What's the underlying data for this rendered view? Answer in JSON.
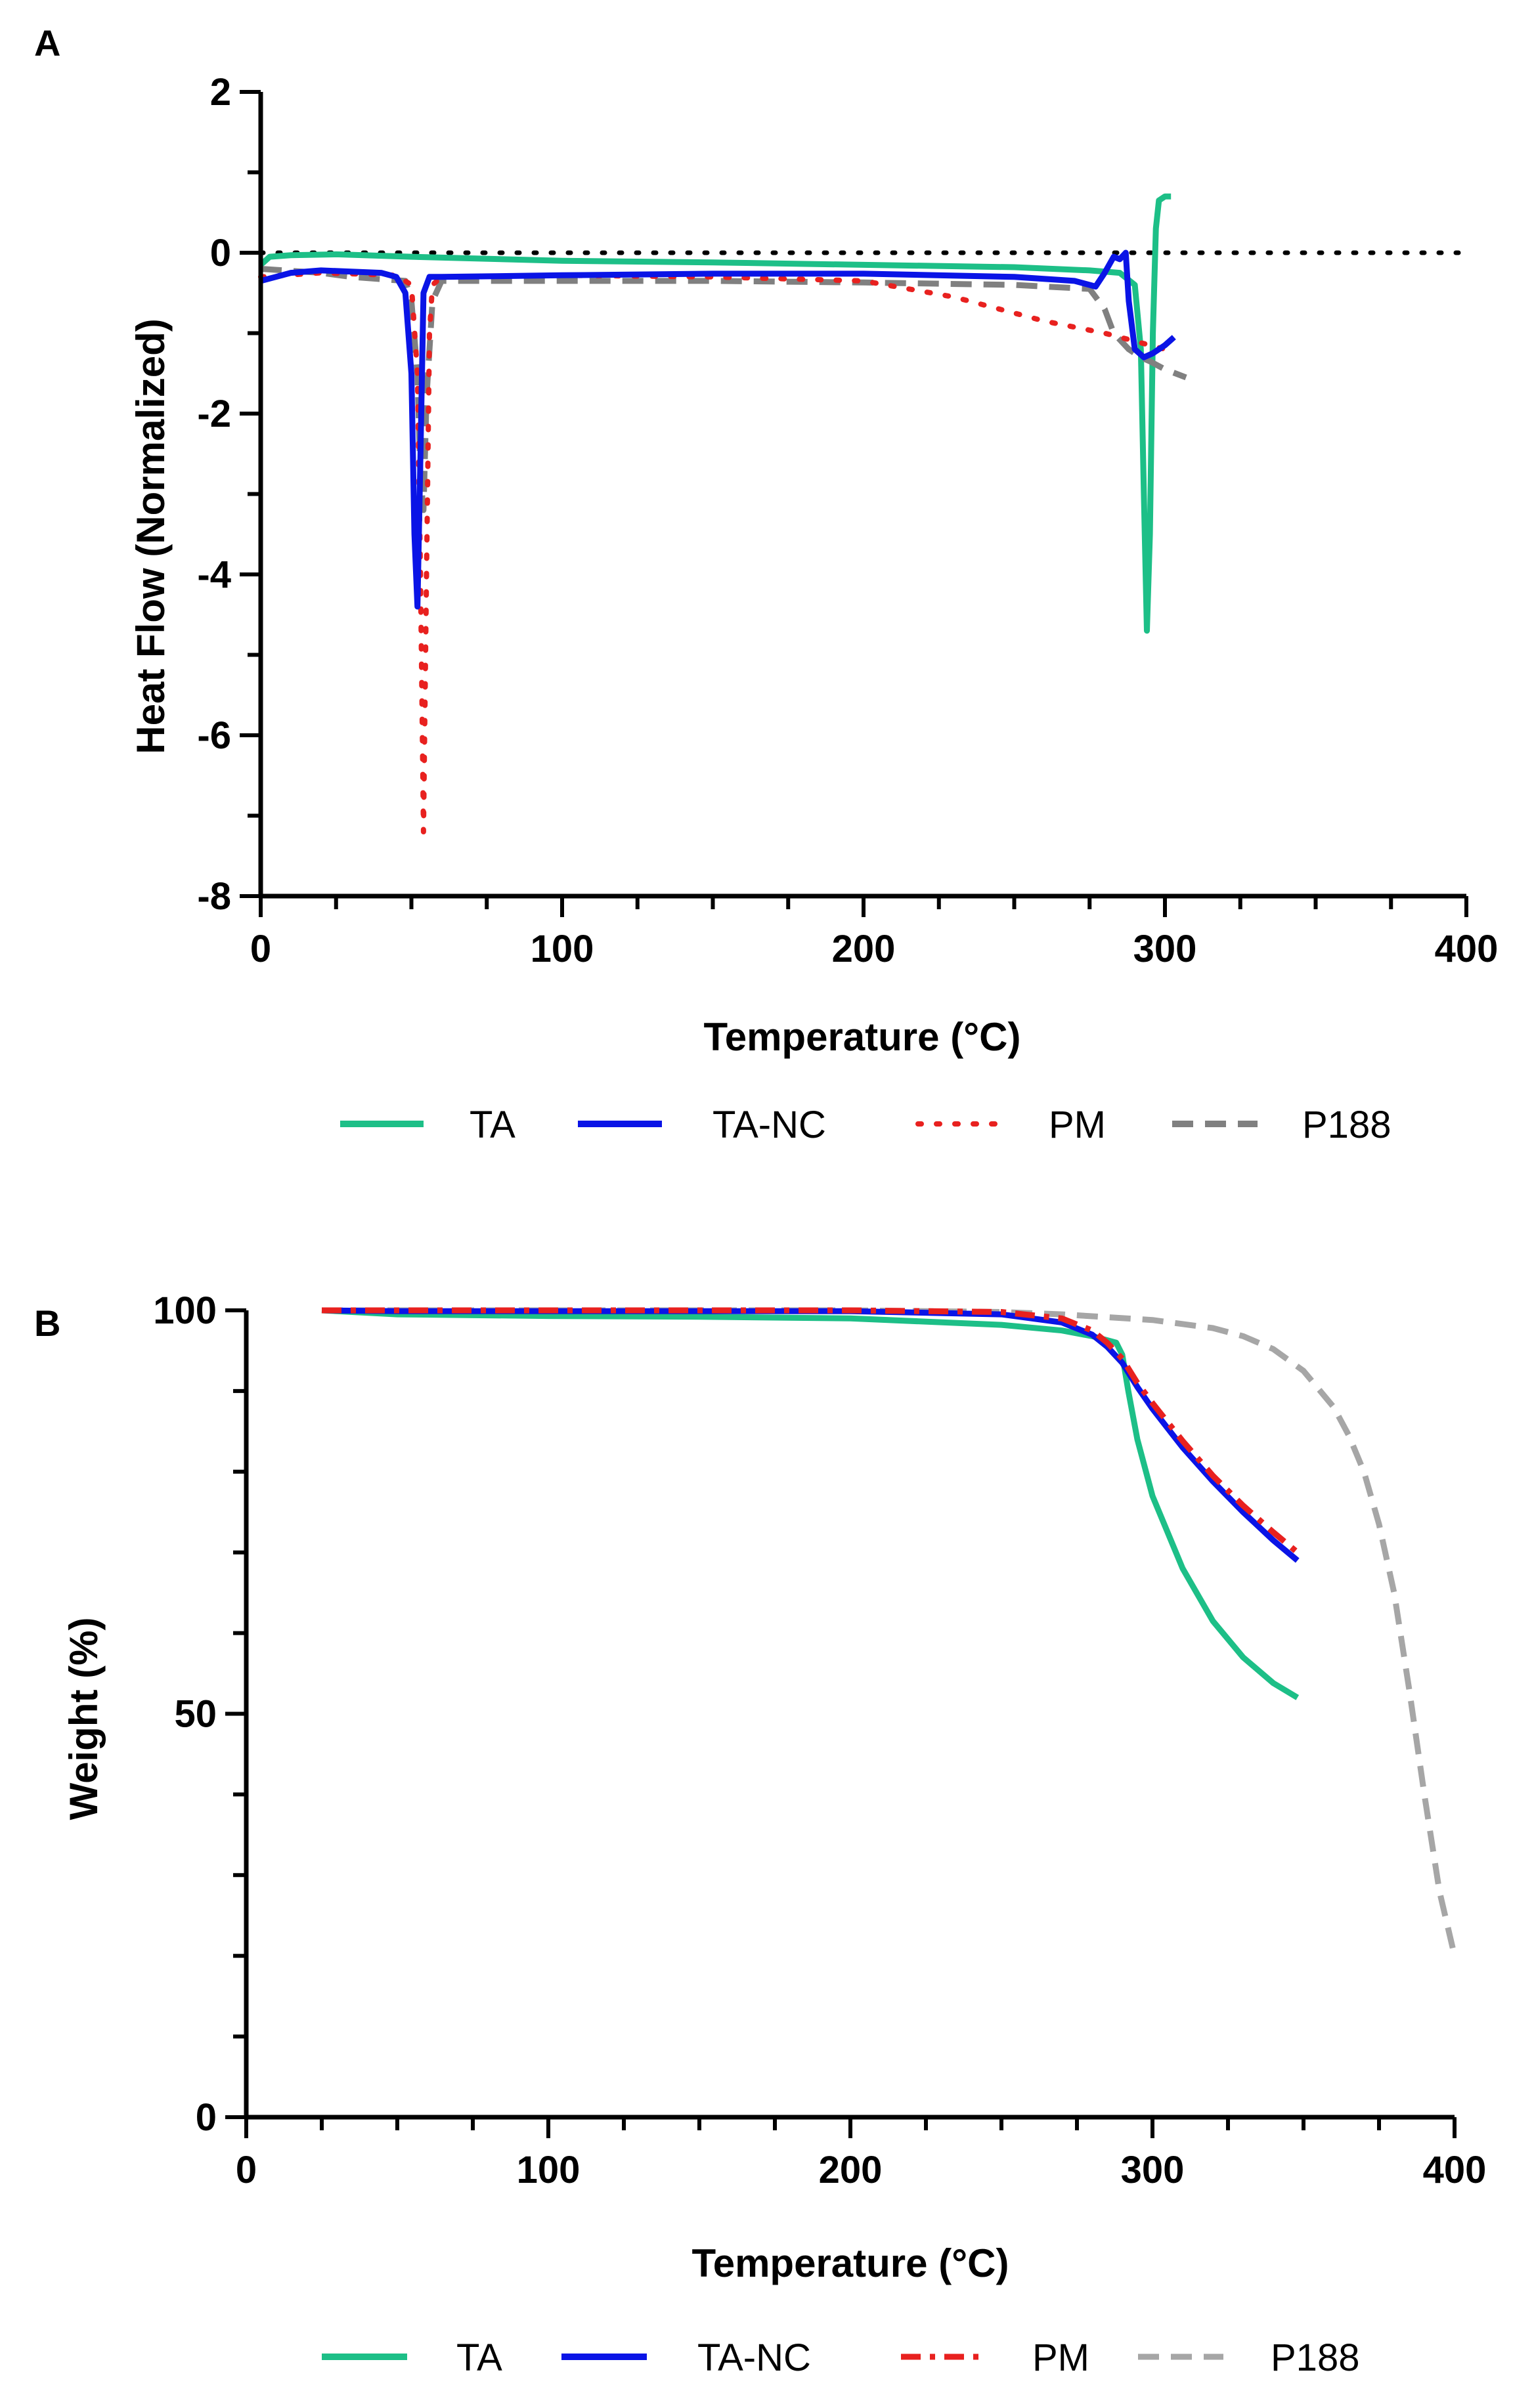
{
  "colors": {
    "TA": "#1dbf87",
    "TA-NC": "#0a14e6",
    "PM": "#e8211f",
    "P188_A": "#808080",
    "P188_B": "#a6a6a6",
    "axis": "#000000"
  },
  "chart_data": [
    {
      "panel": "A",
      "type": "line",
      "title": "",
      "xlabel": "Temperature (°C)",
      "ylabel": "Heat Flow (Normalized)",
      "xlim": [
        0,
        400
      ],
      "ylim": [
        -8,
        2
      ],
      "x_ticks": [
        0,
        100,
        200,
        300,
        400
      ],
      "x_tick_labels": [
        "0",
        "100",
        "200",
        "300",
        "400"
      ],
      "y_ticks": [
        -8,
        -6,
        -4,
        -2,
        0,
        2
      ],
      "y_tick_labels": [
        "-8",
        "-6",
        "-4",
        "-2",
        "0",
        "2"
      ],
      "grid": false,
      "legend_position": "bottom",
      "reference_line": {
        "y": 0,
        "style": "dotted",
        "x_range": [
          0,
          400
        ]
      },
      "series": [
        {
          "name": "TA",
          "style": "solid",
          "x": [
            0,
            3,
            10,
            25,
            50,
            100,
            150,
            200,
            250,
            275,
            285,
            290,
            292,
            293,
            294,
            295,
            296,
            297,
            298,
            300,
            302
          ],
          "y": [
            -0.15,
            -0.05,
            -0.03,
            -0.02,
            -0.05,
            -0.1,
            -0.12,
            -0.15,
            -0.18,
            -0.22,
            -0.25,
            -0.4,
            -1.2,
            -3.0,
            -4.7,
            -3.5,
            -1.0,
            0.3,
            0.65,
            0.7,
            0.7
          ]
        },
        {
          "name": "TA-NC",
          "style": "solid",
          "x": [
            0,
            5,
            10,
            20,
            40,
            45,
            48,
            50,
            51,
            52,
            53,
            54,
            56,
            60,
            100,
            150,
            200,
            250,
            270,
            275,
            277,
            280,
            283,
            285,
            287,
            288,
            290,
            293,
            296,
            300,
            303
          ],
          "y": [
            -0.35,
            -0.3,
            -0.25,
            -0.22,
            -0.25,
            -0.3,
            -0.5,
            -1.5,
            -3.5,
            -4.4,
            -2.5,
            -0.5,
            -0.3,
            -0.3,
            -0.28,
            -0.26,
            -0.26,
            -0.3,
            -0.35,
            -0.4,
            -0.42,
            -0.25,
            -0.05,
            -0.08,
            0.0,
            -0.6,
            -1.2,
            -1.3,
            -1.25,
            -1.15,
            -1.05
          ]
        },
        {
          "name": "PM",
          "style": "dotted",
          "x": [
            0,
            20,
            45,
            50,
            52,
            53,
            54,
            55,
            56,
            57,
            60,
            100,
            150,
            200,
            230,
            260,
            280,
            290,
            300
          ],
          "y": [
            -0.3,
            -0.25,
            -0.28,
            -0.4,
            -1.5,
            -4.0,
            -7.2,
            -4.0,
            -1.0,
            -0.4,
            -0.3,
            -0.28,
            -0.3,
            -0.35,
            -0.55,
            -0.85,
            -1.0,
            -1.1,
            -1.2
          ]
        },
        {
          "name": "P188",
          "style": "dashed",
          "x": [
            0,
            20,
            30,
            48,
            50,
            52,
            53,
            54,
            55,
            57,
            60,
            100,
            150,
            200,
            250,
            275,
            280,
            283,
            288,
            292,
            295,
            300,
            307
          ],
          "y": [
            -0.2,
            -0.25,
            -0.3,
            -0.35,
            -0.6,
            -1.5,
            -2.8,
            -3.2,
            -1.8,
            -0.6,
            -0.35,
            -0.35,
            -0.35,
            -0.37,
            -0.4,
            -0.45,
            -0.7,
            -1.0,
            -1.2,
            -1.3,
            -1.35,
            -1.45,
            -1.55
          ]
        }
      ]
    },
    {
      "panel": "B",
      "type": "line",
      "title": "",
      "xlabel": "Temperature (°C)",
      "ylabel": "Weight (%)",
      "xlim": [
        0,
        400
      ],
      "ylim": [
        0,
        100
      ],
      "x_ticks": [
        0,
        100,
        200,
        300,
        400
      ],
      "x_tick_labels": [
        "0",
        "100",
        "200",
        "300",
        "400"
      ],
      "y_ticks": [
        0,
        50,
        100
      ],
      "y_tick_labels": [
        "0",
        "50",
        "100"
      ],
      "grid": false,
      "legend_position": "bottom",
      "series": [
        {
          "name": "TA",
          "style": "solid",
          "x": [
            25,
            50,
            100,
            150,
            200,
            250,
            270,
            280,
            288,
            290,
            292,
            295,
            300,
            310,
            320,
            330,
            340,
            348
          ],
          "y": [
            100,
            99.5,
            99.3,
            99.2,
            99.0,
            98.2,
            97.5,
            96.8,
            96.0,
            94.5,
            90.0,
            84.0,
            77.0,
            68.0,
            61.5,
            57.0,
            53.8,
            52.0
          ]
        },
        {
          "name": "TA-NC",
          "style": "solid",
          "x": [
            25,
            50,
            100,
            150,
            200,
            250,
            270,
            280,
            285,
            290,
            295,
            300,
            310,
            320,
            330,
            340,
            348
          ],
          "y": [
            100,
            99.9,
            99.9,
            99.9,
            99.9,
            99.5,
            98.5,
            97.0,
            95.5,
            93.5,
            90.5,
            87.8,
            83.0,
            78.8,
            75.0,
            71.5,
            69.0
          ]
        },
        {
          "name": "PM",
          "style": "dashdot",
          "x": [
            25,
            50,
            100,
            150,
            200,
            250,
            270,
            280,
            285,
            290,
            295,
            300,
            310,
            320,
            330,
            340,
            348
          ],
          "y": [
            100,
            100,
            100,
            100,
            100,
            99.8,
            99.0,
            97.5,
            96.0,
            94.0,
            91.0,
            88.5,
            83.8,
            79.5,
            75.8,
            72.5,
            70.0
          ]
        },
        {
          "name": "P188",
          "style": "dashed",
          "x": [
            25,
            100,
            200,
            250,
            270,
            300,
            320,
            330,
            340,
            350,
            360,
            365,
            370,
            375,
            380,
            385,
            390,
            395,
            400
          ],
          "y": [
            100,
            100,
            100,
            99.8,
            99.5,
            98.8,
            97.8,
            96.8,
            95.2,
            92.5,
            88.0,
            84.5,
            80.0,
            73.5,
            65.0,
            53.0,
            40.0,
            28.0,
            20.0
          ]
        }
      ]
    }
  ],
  "panels": {
    "A": {
      "label": "A",
      "xlabel": "Temperature (°C)",
      "ylabel": "Heat Flow (Normalized)",
      "legend": [
        {
          "name": "TA",
          "style": "solid"
        },
        {
          "name": "TA-NC",
          "style": "solid"
        },
        {
          "name": "PM",
          "style": "dotted"
        },
        {
          "name": "P188",
          "style": "dashed"
        }
      ]
    },
    "B": {
      "label": "B",
      "xlabel": "Temperature (°C)",
      "ylabel": "Weight (%)",
      "legend": [
        {
          "name": "TA",
          "style": "solid"
        },
        {
          "name": "TA-NC",
          "style": "solid"
        },
        {
          "name": "PM",
          "style": "dashdot"
        },
        {
          "name": "P188",
          "style": "dashed"
        }
      ]
    }
  }
}
